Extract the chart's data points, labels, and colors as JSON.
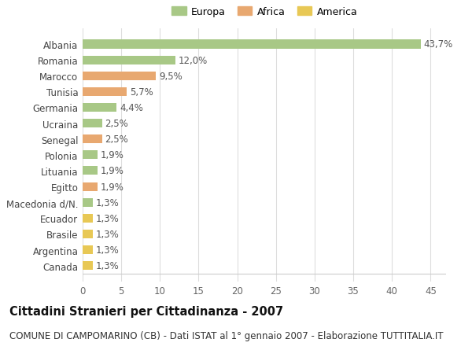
{
  "categories": [
    "Albania",
    "Romania",
    "Marocco",
    "Tunisia",
    "Germania",
    "Ucraina",
    "Senegal",
    "Polonia",
    "Lituania",
    "Egitto",
    "Macedonia d/N.",
    "Ecuador",
    "Brasile",
    "Argentina",
    "Canada"
  ],
  "values": [
    43.7,
    12.0,
    9.5,
    5.7,
    4.4,
    2.5,
    2.5,
    1.9,
    1.9,
    1.9,
    1.3,
    1.3,
    1.3,
    1.3,
    1.3
  ],
  "labels": [
    "43,7%",
    "12,0%",
    "9,5%",
    "5,7%",
    "4,4%",
    "2,5%",
    "2,5%",
    "1,9%",
    "1,9%",
    "1,9%",
    "1,3%",
    "1,3%",
    "1,3%",
    "1,3%",
    "1,3%"
  ],
  "continents": [
    "Europa",
    "Europa",
    "Africa",
    "Africa",
    "Europa",
    "Europa",
    "Africa",
    "Europa",
    "Europa",
    "Africa",
    "Europa",
    "America",
    "America",
    "America",
    "America"
  ],
  "colors": {
    "Europa": "#a8c886",
    "Africa": "#e8a870",
    "America": "#e8c855"
  },
  "title": "Cittadini Stranieri per Cittadinanza - 2007",
  "subtitle": "COMUNE DI CAMPOMARINO (CB) - Dati ISTAT al 1° gennaio 2007 - Elaborazione TUTTITALIA.IT",
  "xlim": [
    0,
    47
  ],
  "xticks": [
    0,
    5,
    10,
    15,
    20,
    25,
    30,
    35,
    40,
    45
  ],
  "bg_color": "#ffffff",
  "grid_color": "#dddddd",
  "bar_height": 0.55,
  "title_fontsize": 10.5,
  "subtitle_fontsize": 8.5,
  "tick_fontsize": 8.5,
  "label_fontsize": 8.5,
  "legend_fontsize": 9
}
